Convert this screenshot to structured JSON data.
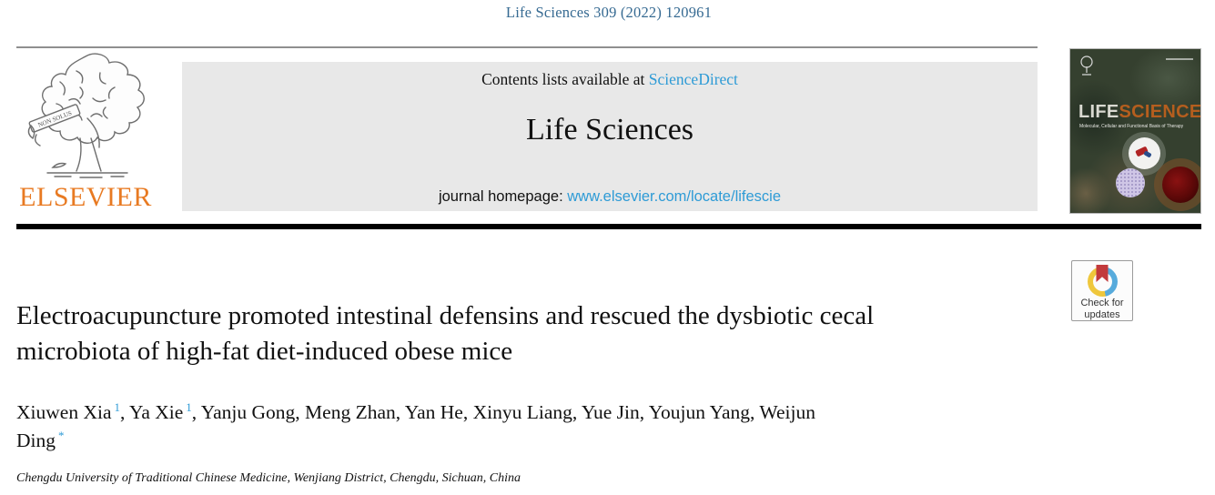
{
  "masthead": {
    "journal_ref": "Life Sciences 309 (2022) 120961",
    "contents_line_prefix": "Contents lists available at",
    "sciencedirect_link": "ScienceDirect",
    "journal_title": "Life Sciences",
    "homepage_label": "journal homepage:",
    "homepage_link": "www.elsevier.com/locate/lifescie"
  },
  "publisher": {
    "name": "ELSEVIER",
    "motto": "NON SOLUS"
  },
  "cover": {
    "title_part1": "LIFE",
    "title_part2": "SCIENCES",
    "subtitle": "Molecular, Cellular and Functional Basis of Therapy"
  },
  "update_badge": {
    "line1": "Check for",
    "line2": "updates"
  },
  "article": {
    "title": "Electroacupuncture promoted intestinal defensins and rescued the dysbiotic cecal microbiota of high-fat diet-induced obese mice",
    "authors": [
      {
        "name": "Xiuwen Xia",
        "sup": "1"
      },
      {
        "name": "Ya Xie",
        "sup": "1"
      },
      {
        "name": "Yanju Gong",
        "sup": ""
      },
      {
        "name": "Meng Zhan",
        "sup": ""
      },
      {
        "name": "Yan He",
        "sup": ""
      },
      {
        "name": "Xinyu Liang",
        "sup": ""
      },
      {
        "name": "Yue Jin",
        "sup": ""
      },
      {
        "name": "Youjun Yang",
        "sup": ""
      },
      {
        "name": "Weijun Ding",
        "sup": "*"
      }
    ],
    "affiliation": "Chengdu University of Traditional Chinese Medicine, Wenjiang District, Chengdu, Sichuan, China"
  },
  "colors": {
    "journal_ref_blue": "#366A92",
    "link_blue": "#2E9BD6",
    "elsevier_orange": "#E87A22",
    "banner_gray": "#E8E8E8",
    "cover_background": "#35402F",
    "cover_orange": "#B55E1E",
    "badge_blue": "#57ABDC",
    "badge_yellow": "#EFC73C",
    "badge_red": "#C23A3C"
  }
}
